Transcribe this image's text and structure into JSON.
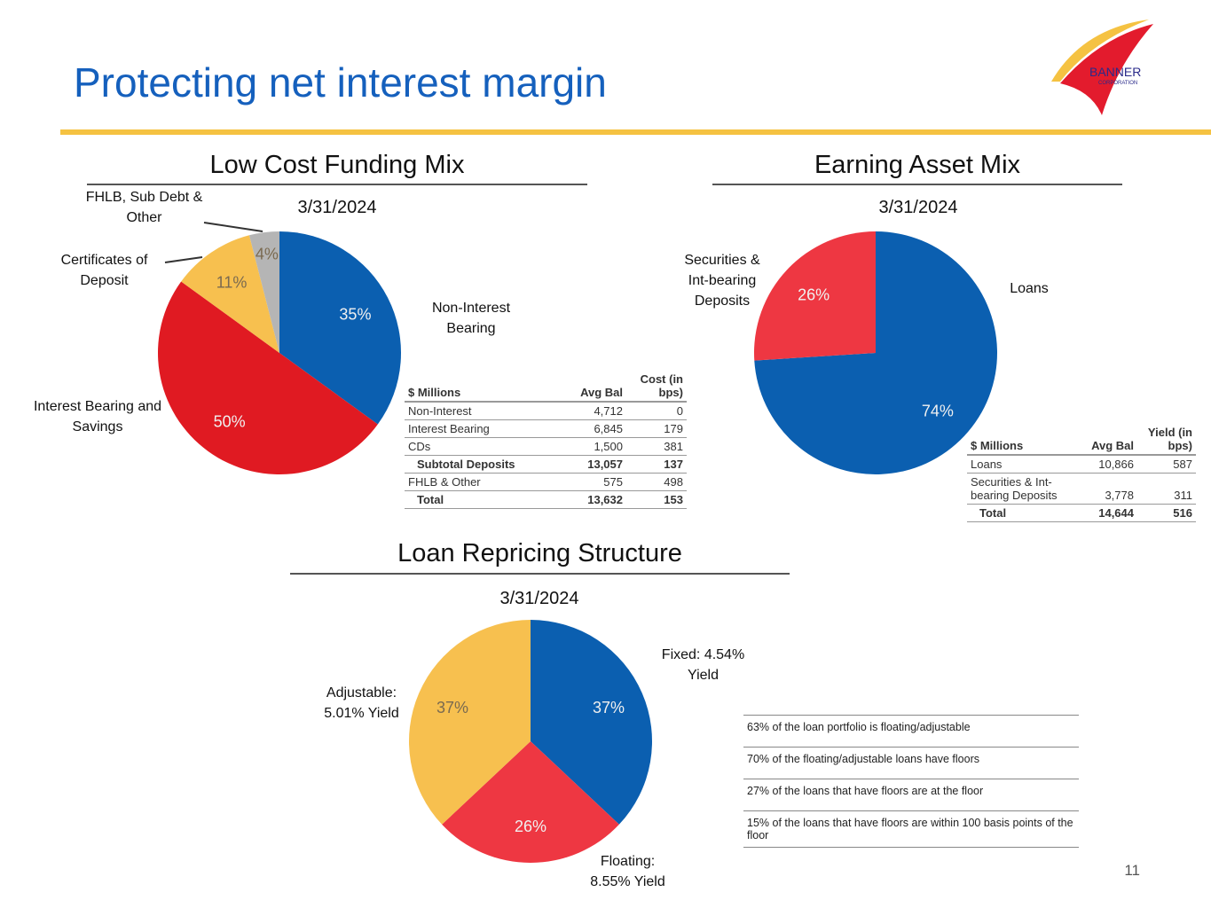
{
  "title": "Protecting net interest margin",
  "logo": {
    "text": "BANNER",
    "sub": "CORPORATION"
  },
  "page_number": "11",
  "chart_data": [
    {
      "type": "pie",
      "title": "Low Cost Funding Mix",
      "date": "3/31/2024",
      "slices": [
        {
          "label": "Non-Interest Bearing",
          "value": 35,
          "color": "#0b5fb0"
        },
        {
          "label": "Interest Bearing and Savings",
          "value": 50,
          "color": "#e01a22"
        },
        {
          "label": "Certificates of Deposit",
          "value": 11,
          "color": "#f7c04f"
        },
        {
          "label": "FHLB, Sub Debt & Other",
          "value": 4,
          "color": "#b5b5b5"
        }
      ]
    },
    {
      "type": "pie",
      "title": "Earning Asset Mix",
      "date": "3/31/2024",
      "slices": [
        {
          "label": "Loans",
          "value": 74,
          "color": "#0b5fb0"
        },
        {
          "label": "Securities & Int-bearing Deposits",
          "value": 26,
          "color": "#ee3742"
        }
      ]
    },
    {
      "type": "pie",
      "title": "Loan Repricing Structure",
      "date": "3/31/2024",
      "slices": [
        {
          "label": "Fixed: 4.54% Yield",
          "value": 37,
          "color": "#0b5fb0"
        },
        {
          "label": "Floating: 8.55% Yield",
          "value": 26,
          "color": "#ee3742"
        },
        {
          "label": "Adjustable: 5.01% Yield",
          "value": 37,
          "color": "#f7c04f"
        }
      ]
    }
  ],
  "funding_table": {
    "headers": [
      "$ Millions",
      "Avg Bal",
      "Cost (in bps)"
    ],
    "rows": [
      [
        "Non-Interest",
        "4,712",
        "0"
      ],
      [
        "Interest Bearing",
        "6,845",
        "179"
      ],
      [
        "CDs",
        "1,500",
        "381"
      ],
      [
        "Subtotal Deposits",
        "13,057",
        "137"
      ],
      [
        "FHLB & Other",
        "575",
        "498"
      ],
      [
        "Total",
        "13,632",
        "153"
      ]
    ]
  },
  "asset_table": {
    "headers": [
      "$ Millions",
      "Avg Bal",
      "Yield (in bps)"
    ],
    "rows": [
      [
        "Loans",
        "10,866",
        "587"
      ],
      [
        "Securities & Int-bearing Deposits",
        "3,778",
        "311"
      ],
      [
        "Total",
        "14,644",
        "516"
      ]
    ]
  },
  "notes": [
    "63% of the loan portfolio is floating/adjustable",
    "70% of the floating/adjustable loans have floors",
    "27% of the loans that have floors are at the floor",
    "15% of the loans that have floors are within 100 basis points of the floor"
  ]
}
